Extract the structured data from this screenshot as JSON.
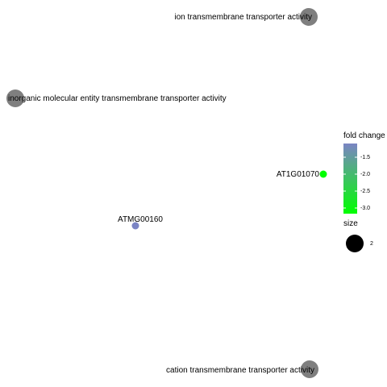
{
  "nodes": [
    {
      "id": "ion-transport",
      "label": "ion transmembrane transporter activity",
      "kind": "category",
      "color": "#7f7f7f"
    },
    {
      "id": "inorganic-transport",
      "label": "inorganic molecular entity transmembrane transporter activity",
      "kind": "category",
      "color": "#7f7f7f"
    },
    {
      "id": "at1g01070",
      "label": "AT1G01070",
      "kind": "gene",
      "fold_change": -3.0,
      "color": "#00ff00"
    },
    {
      "id": "atmg00160",
      "label": "ATMG00160",
      "kind": "gene",
      "fold_change": -1.4,
      "color": "#7b84c4"
    },
    {
      "id": "cation-transport",
      "label": "cation transmembrane transporter activity",
      "kind": "category",
      "color": "#7f7f7f"
    }
  ],
  "legend": {
    "color_title": "fold change",
    "color_ticks": [
      "-1.5",
      "-2.0",
      "-2.5",
      "-3.0"
    ],
    "gradient_top": "#7b84c4",
    "gradient_bottom": "#00ff00",
    "size_title": "size",
    "size_value": "2",
    "size_color": "#000000"
  }
}
